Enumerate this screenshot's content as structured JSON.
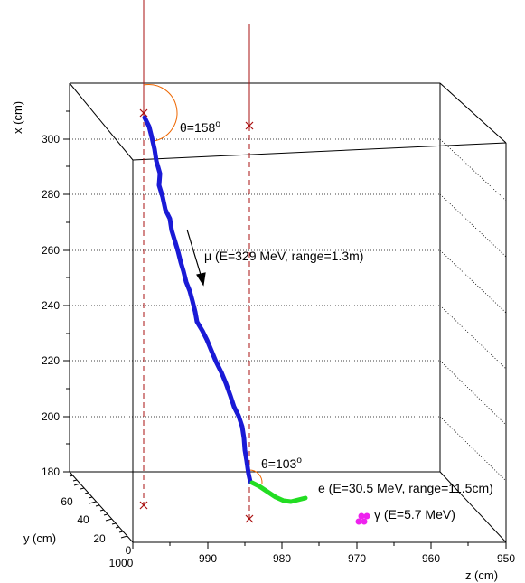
{
  "axes": {
    "x": {
      "label": "x (cm)",
      "ticks": [
        "180",
        "200",
        "220",
        "240",
        "260",
        "280",
        "300"
      ]
    },
    "y": {
      "label": "y (cm)",
      "ticks": [
        "0",
        "20",
        "40",
        "60"
      ]
    },
    "z": {
      "label": "z (cm)",
      "ticks": [
        "1000",
        "990",
        "980",
        "970",
        "960",
        "950"
      ]
    }
  },
  "annotations": {
    "theta1": {
      "base": "θ=158",
      "sup": "o"
    },
    "theta2": {
      "base": "θ=103",
      "sup": "o"
    },
    "muon": "μ (E=329 MeV, range=1.3m)",
    "electron": "e (E=30.5 MeV, range=11.5cm)",
    "gamma": "γ (E=5.7 MeV)"
  },
  "colors": {
    "muon_track": "#1a1ad6",
    "electron_track": "#22dd22",
    "gamma": "#ee22ee",
    "beam_lines": "#aa1111",
    "angle_arcs": "#ee6600",
    "box": "#000000"
  }
}
